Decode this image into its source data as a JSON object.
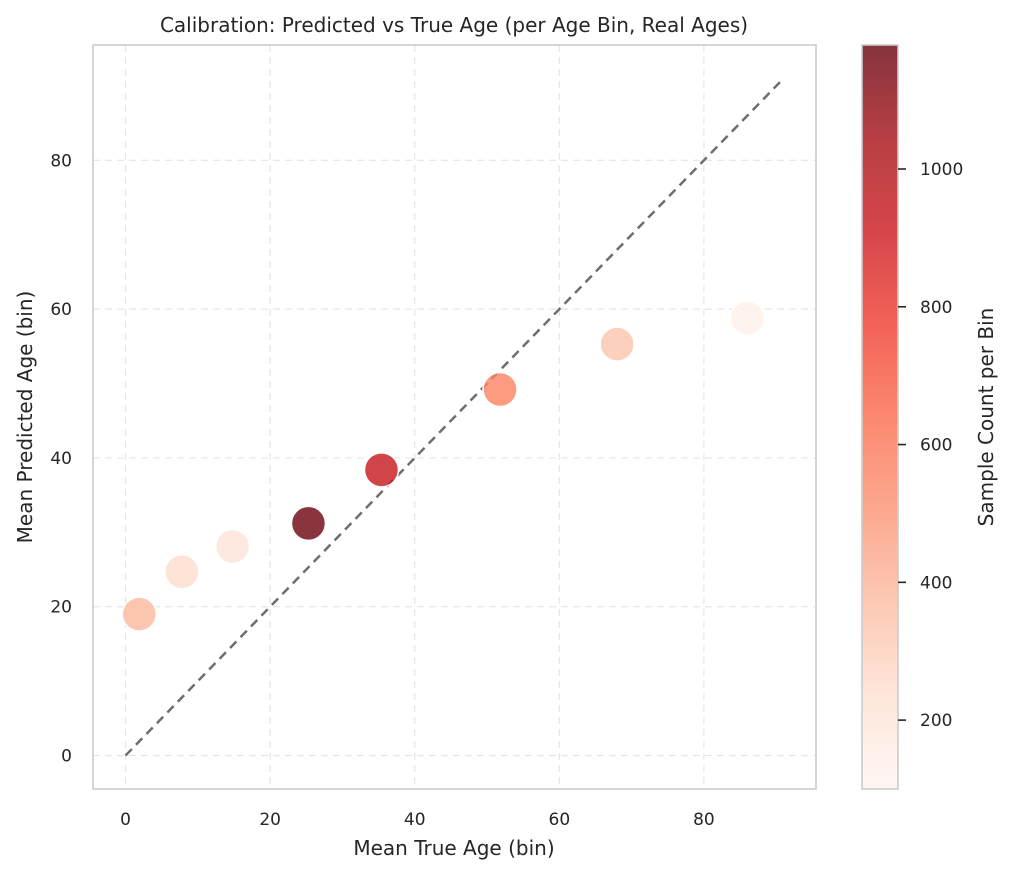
{
  "chart_data": {
    "type": "scatter",
    "title": "Calibration: Predicted vs True Age (per Age Bin, Real Ages)",
    "xlabel": "Mean True Age (bin)",
    "ylabel": "Mean Predicted Age (bin)",
    "xlim": [
      -4.5,
      95.5
    ],
    "ylim": [
      -4.5,
      95.5
    ],
    "xticks": [
      0,
      20,
      40,
      60,
      80
    ],
    "yticks": [
      0,
      20,
      40,
      60,
      80
    ],
    "grid": true,
    "points": [
      {
        "x": 1.9,
        "y": 19.0,
        "count": 380
      },
      {
        "x": 7.8,
        "y": 24.7,
        "count": 250
      },
      {
        "x": 14.8,
        "y": 28.1,
        "count": 210
      },
      {
        "x": 25.3,
        "y": 31.2,
        "count": 1170
      },
      {
        "x": 35.4,
        "y": 38.4,
        "count": 930
      },
      {
        "x": 51.8,
        "y": 49.2,
        "count": 560
      },
      {
        "x": 68.0,
        "y": 55.3,
        "count": 340
      },
      {
        "x": 86.0,
        "y": 58.8,
        "count": 130
      }
    ],
    "reference_line": {
      "x": [
        0,
        90.7
      ],
      "y": [
        0,
        90.7
      ],
      "style": "dashed",
      "color": "#6e6e6e"
    },
    "colorbar": {
      "label": "Sample Count per Bin",
      "min": 100,
      "max": 1180,
      "ticks": [
        200,
        400,
        600,
        800,
        1000
      ],
      "colormap": "Reds",
      "alpha": 0.8
    }
  }
}
